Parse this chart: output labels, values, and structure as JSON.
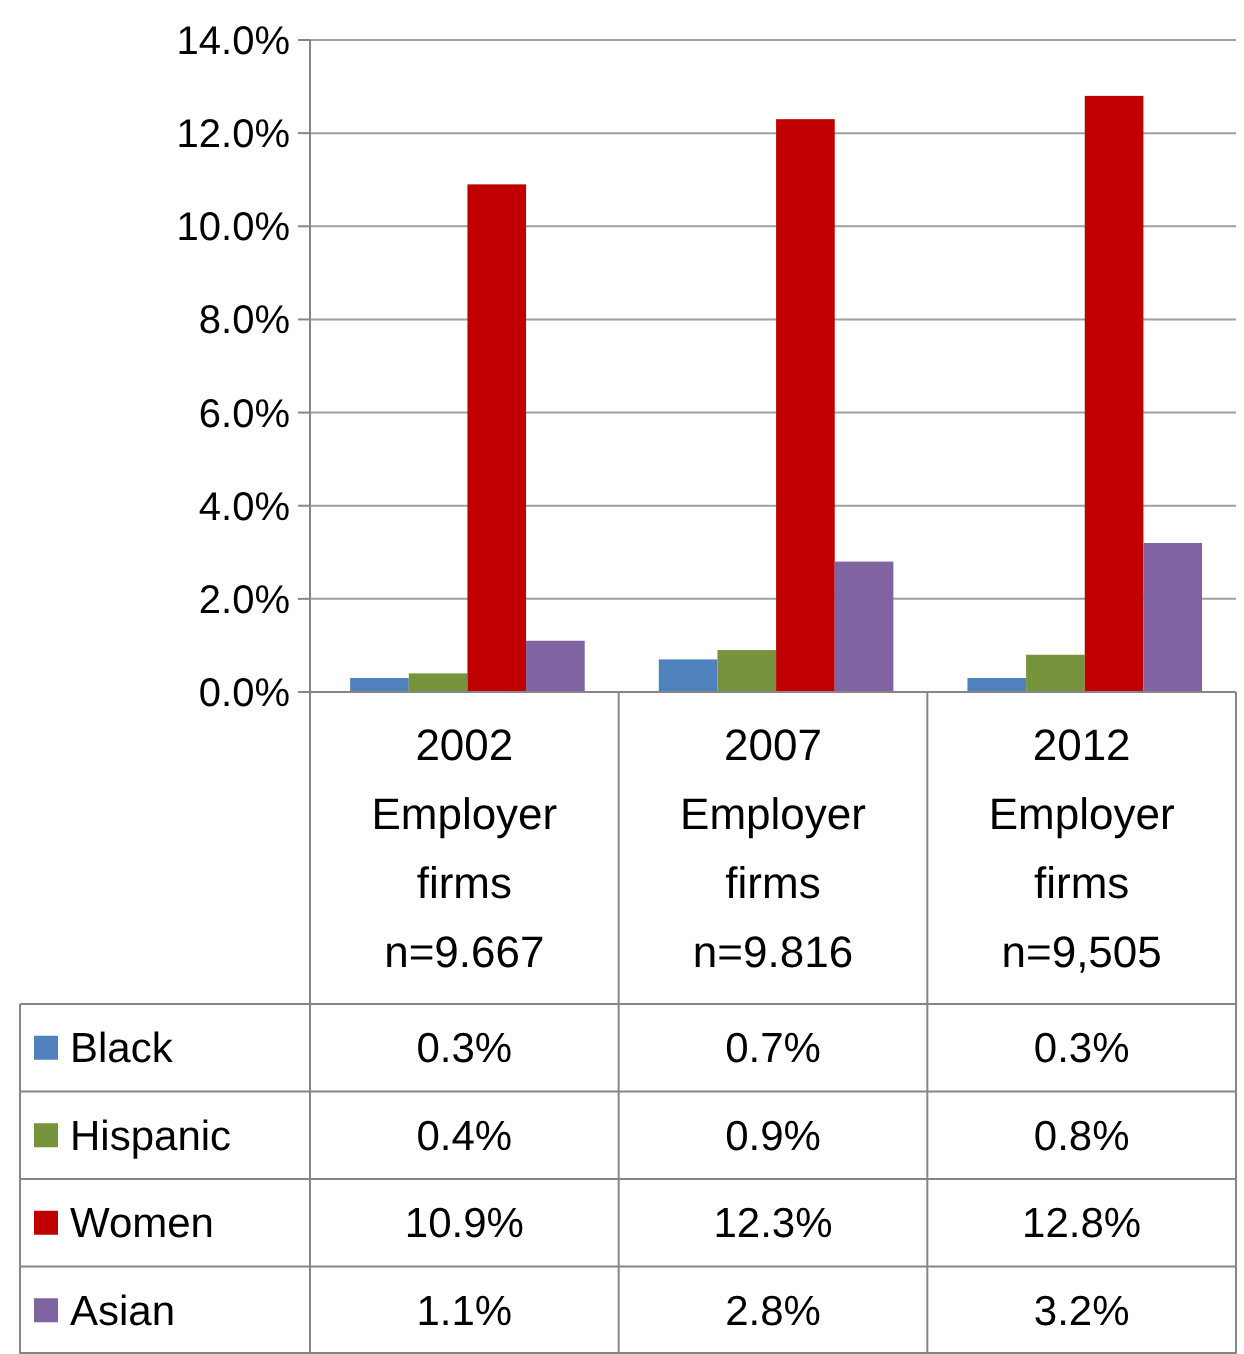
{
  "chart_data": {
    "type": "bar",
    "categories": [
      "2002\nEmployer\nfirms\nn=9.667",
      "2007\nEmployer\nfirms\nn=9.816",
      "2012\nEmployer\nfirms\nn=9,505"
    ],
    "series": [
      {
        "name": "Black",
        "color": "#4f81bd",
        "values": [
          0.3,
          0.7,
          0.3
        ],
        "value_labels": [
          "0.3%",
          "0.7%",
          "0.3%"
        ]
      },
      {
        "name": "Hispanic",
        "color": "#77933c",
        "values": [
          0.4,
          0.9,
          0.8
        ],
        "value_labels": [
          "0.4%",
          "0.9%",
          "0.8%"
        ]
      },
      {
        "name": "Women",
        "color": "#c00000",
        "values": [
          10.9,
          12.3,
          12.8
        ],
        "value_labels": [
          "10.9%",
          "12.3%",
          "12.8%"
        ]
      },
      {
        "name": "Asian",
        "color": "#8064a2",
        "values": [
          1.1,
          2.8,
          3.2
        ],
        "value_labels": [
          "1.1%",
          "2.8%",
          "3.2%"
        ]
      }
    ],
    "ylim": [
      0,
      14
    ],
    "yticks": [
      {
        "value": 0,
        "label": "0.0%"
      },
      {
        "value": 2,
        "label": "2.0%"
      },
      {
        "value": 4,
        "label": "4.0%"
      },
      {
        "value": 6,
        "label": "6.0%"
      },
      {
        "value": 8,
        "label": "8.0%"
      },
      {
        "value": 10,
        "label": "10.0%"
      },
      {
        "value": 12,
        "label": "12.0%"
      },
      {
        "value": 14,
        "label": "14.0%"
      }
    ],
    "grid": "y",
    "legend": "bottom"
  }
}
